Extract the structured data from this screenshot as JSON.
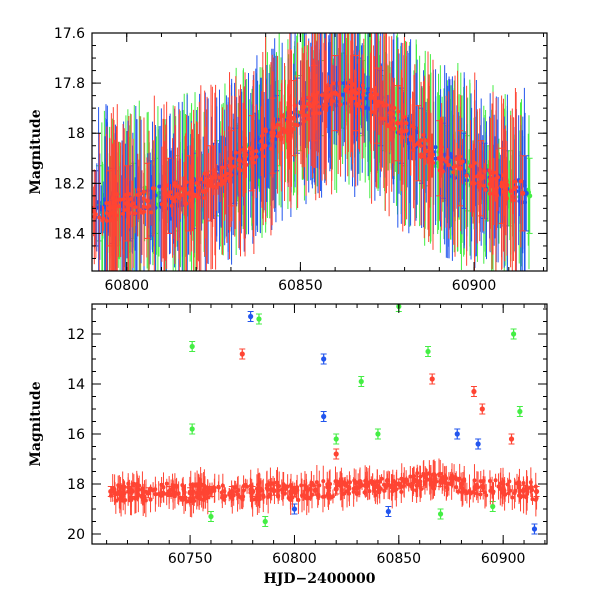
{
  "chart_data": [
    {
      "type": "scatter",
      "panel": "top",
      "title": "",
      "xlabel": "",
      "ylabel": "Magnitude",
      "xlim": [
        60790,
        60921
      ],
      "ylim": [
        18.55,
        17.6
      ],
      "y_inverted": true,
      "x_ticks": [
        60800,
        60850,
        60900
      ],
      "y_ticks": [
        17.6,
        17.8,
        18,
        18.2,
        18.4
      ],
      "x_tick_labels": [
        "60800",
        "60850",
        "60900"
      ],
      "y_tick_labels": [
        "17.6",
        "17.8",
        "18",
        "18.2",
        "18.4"
      ],
      "grid": false,
      "legend": "none",
      "series": [
        {
          "color": "#44ee44",
          "x": [
            60792,
            60797,
            60802,
            60808,
            60814,
            60820,
            60826,
            60832,
            60838,
            60844,
            60850,
            60856,
            60862,
            60868,
            60874,
            60880,
            60886,
            60892,
            60898,
            60904,
            60910,
            60916
          ],
          "y": [
            18.28,
            18.3,
            18.27,
            18.25,
            18.24,
            18.22,
            18.18,
            18.12,
            18.06,
            17.98,
            17.92,
            17.86,
            17.83,
            17.86,
            17.92,
            17.98,
            18.06,
            18.12,
            18.16,
            18.2,
            18.22,
            18.25
          ]
        },
        {
          "color": "#2255ee",
          "x": [
            60791,
            60796,
            60801,
            60807,
            60813,
            60819,
            60825,
            60831,
            60837,
            60843,
            60849,
            60855,
            60861,
            60867,
            60873,
            60879,
            60885,
            60891,
            60897,
            60903,
            60909,
            60915
          ],
          "y": [
            18.3,
            18.29,
            18.28,
            18.26,
            18.25,
            18.23,
            18.19,
            18.13,
            18.07,
            18.0,
            17.93,
            17.87,
            17.84,
            17.85,
            17.9,
            17.97,
            18.05,
            18.11,
            18.15,
            18.19,
            18.22,
            18.24
          ]
        },
        {
          "color": "#ff4433",
          "x": [
            60790,
            60795,
            60800,
            60806,
            60812,
            60818,
            60824,
            60830,
            60836,
            60842,
            60848,
            60854,
            60860,
            60866,
            60872,
            60878,
            60884,
            60890,
            60896,
            60902,
            60908,
            60914
          ],
          "y": [
            18.3,
            18.3,
            18.28,
            18.27,
            18.25,
            18.24,
            18.2,
            18.14,
            18.08,
            18.01,
            17.94,
            17.88,
            17.84,
            17.84,
            17.89,
            17.96,
            18.04,
            18.1,
            18.14,
            18.18,
            18.21,
            18.24
          ]
        }
      ]
    },
    {
      "type": "scatter",
      "panel": "bottom",
      "title": "",
      "xlabel": "HJD−2400000",
      "ylabel": "Magnitude",
      "xlim": [
        60703,
        60921
      ],
      "ylim": [
        20.4,
        10.8
      ],
      "y_inverted": true,
      "x_ticks": [
        60750,
        60800,
        60850,
        60900
      ],
      "y_ticks": [
        12,
        14,
        16,
        18,
        20
      ],
      "x_tick_labels": [
        "60750",
        "60800",
        "60850",
        "60900"
      ],
      "y_tick_labels": [
        "12",
        "14",
        "16",
        "18",
        "20"
      ],
      "grid": false,
      "legend": "none",
      "series": [
        {
          "color": "#44ee44",
          "x": [
            60751,
            60751,
            60783,
            60832,
            60850,
            60864,
            60905,
            60908,
            60820,
            60840,
            60760,
            60786,
            60870,
            60895
          ],
          "y": [
            12.5,
            15.8,
            11.4,
            13.9,
            10.9,
            12.7,
            12.0,
            15.1,
            16.2,
            16.0,
            19.3,
            19.5,
            19.2,
            18.9
          ]
        },
        {
          "color": "#2255ee",
          "x": [
            60779,
            60814,
            60814,
            60878,
            60915,
            60800,
            60845,
            60888
          ],
          "y": [
            11.3,
            13.0,
            15.3,
            16.0,
            19.8,
            19.0,
            19.1,
            16.4
          ]
        },
        {
          "color": "#ff4433",
          "x": [
            60775,
            60866,
            60886,
            60890,
            60904,
            60820
          ],
          "y": [
            12.8,
            13.8,
            14.3,
            15.0,
            16.2,
            16.8
          ]
        },
        {
          "color": "#ff4433",
          "x": [
            60712,
            60717,
            60722,
            60730,
            60740,
            60750,
            60760,
            60770,
            60780,
            60790,
            60800,
            60810,
            60820,
            60830,
            60840,
            60850,
            60860,
            60870,
            60880,
            60890,
            60900,
            60910,
            60916
          ],
          "y": [
            18.3,
            18.35,
            18.3,
            18.35,
            18.3,
            18.35,
            18.3,
            18.3,
            18.3,
            18.25,
            18.3,
            18.25,
            18.2,
            18.15,
            18.1,
            18.0,
            17.9,
            17.9,
            18.0,
            18.1,
            18.2,
            18.25,
            18.3
          ]
        }
      ]
    }
  ]
}
